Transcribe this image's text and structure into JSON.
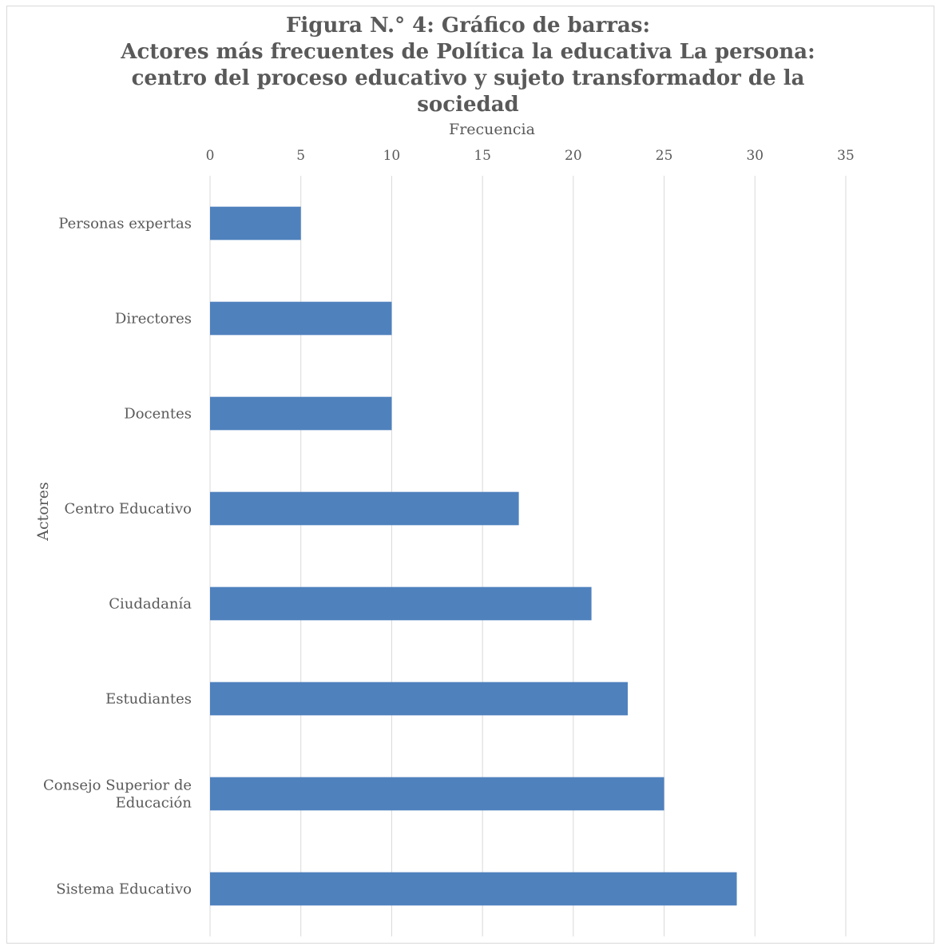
{
  "chart_data": {
    "type": "bar",
    "orientation": "horizontal",
    "title_lines": [
      "Figura N.° 4: Gráfico de barras:",
      "Actores más frecuentes de Política la educativa La persona:",
      "centro del proceso educativo y sujeto transformador de la",
      "sociedad"
    ],
    "xlabel": "Frecuencia",
    "ylabel": "Actores",
    "xlim": [
      0,
      35
    ],
    "x_ticks": [
      "0",
      "5",
      "10",
      "15",
      "20",
      "25",
      "30",
      "35"
    ],
    "categories": [
      [
        "Personas expertas"
      ],
      [
        "Directores"
      ],
      [
        "Docentes"
      ],
      [
        "Centro Educativo"
      ],
      [
        "Ciudadanía"
      ],
      [
        "Estudiantes"
      ],
      [
        "Consejo Superior de",
        "Educación"
      ],
      [
        "Sistema Educativo"
      ]
    ],
    "values": [
      5,
      10,
      10,
      17,
      21,
      23,
      25,
      29
    ],
    "bar_color": "#4f81bd",
    "grid_color": "#d9d9d9",
    "text_color": "#595959",
    "gridlines": "vertical",
    "axis_position": "top"
  }
}
